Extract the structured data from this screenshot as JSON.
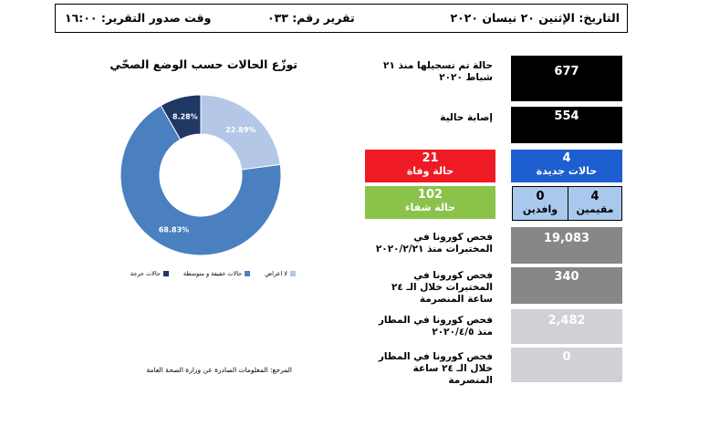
{
  "header": {
    "date": "التاريخ: الإثنين ٢٠ نيسان ٢٠٢٠",
    "report_number": "تقرير رقم: ٠٣٣",
    "issue_time": "وقت صدور التقرير: ١٦:٠٠"
  },
  "stats": {
    "registered_label": "حالة تم تسجيلها منذ ٢١ شباط ٢٠٢٠",
    "registered_value": "677",
    "current_label": "إصابة حالية",
    "current_value": "554",
    "deaths_value": "21",
    "deaths_label": "حالة وفاة",
    "new_value": "4",
    "new_label": "حالات جديدة",
    "recovered_value": "102",
    "recovered_label": "حالة شفاء",
    "residents_value": "4",
    "residents_label": "مقيمين",
    "arrivals_value": "0",
    "arrivals_label": "وافدين",
    "lab_total_label": "فحص كورونا في المختبرات منذ ٢٠٢٠/٢/٢١",
    "lab_total_value": "19,083",
    "lab_24h_label": "فحص كورونا في المختبرات خلال الـ ٢٤ ساعة المنصرمة",
    "lab_24h_value": "340",
    "airport_total_label": "فحص كورونا في المطار منذ ٢٠٢٠/٤/٥",
    "airport_total_value": "2,482",
    "airport_24h_label": "فحص كورونا في المطار خلال الـ ٢٤ ساعة المنصرمة",
    "airport_24h_value": "0"
  },
  "colors": {
    "black": "#000000",
    "red": "#ef1b24",
    "blue": "#1d5fcf",
    "green": "#8bc34a",
    "light_blue": "#a9c8ee",
    "gray_dark": "#878787",
    "gray_light": "#d2d0d6"
  },
  "chart_data": {
    "type": "pie",
    "title": "توزّع الحالات حسب الوضع الصحّي",
    "categories": [
      "لا اعراض",
      "حالات خفيفة و متوسطة",
      "حالات حرجة"
    ],
    "values": [
      22.89,
      68.83,
      8.28
    ],
    "labels": [
      "22.89%",
      "68.83%",
      "8.28%"
    ],
    "colors": [
      "#b4c7e7",
      "#4a7fc0",
      "#1f3864"
    ],
    "legend": "bottom"
  },
  "source": "المرجع: المعلومات الصادرة عن وزارة الصحة العامة"
}
